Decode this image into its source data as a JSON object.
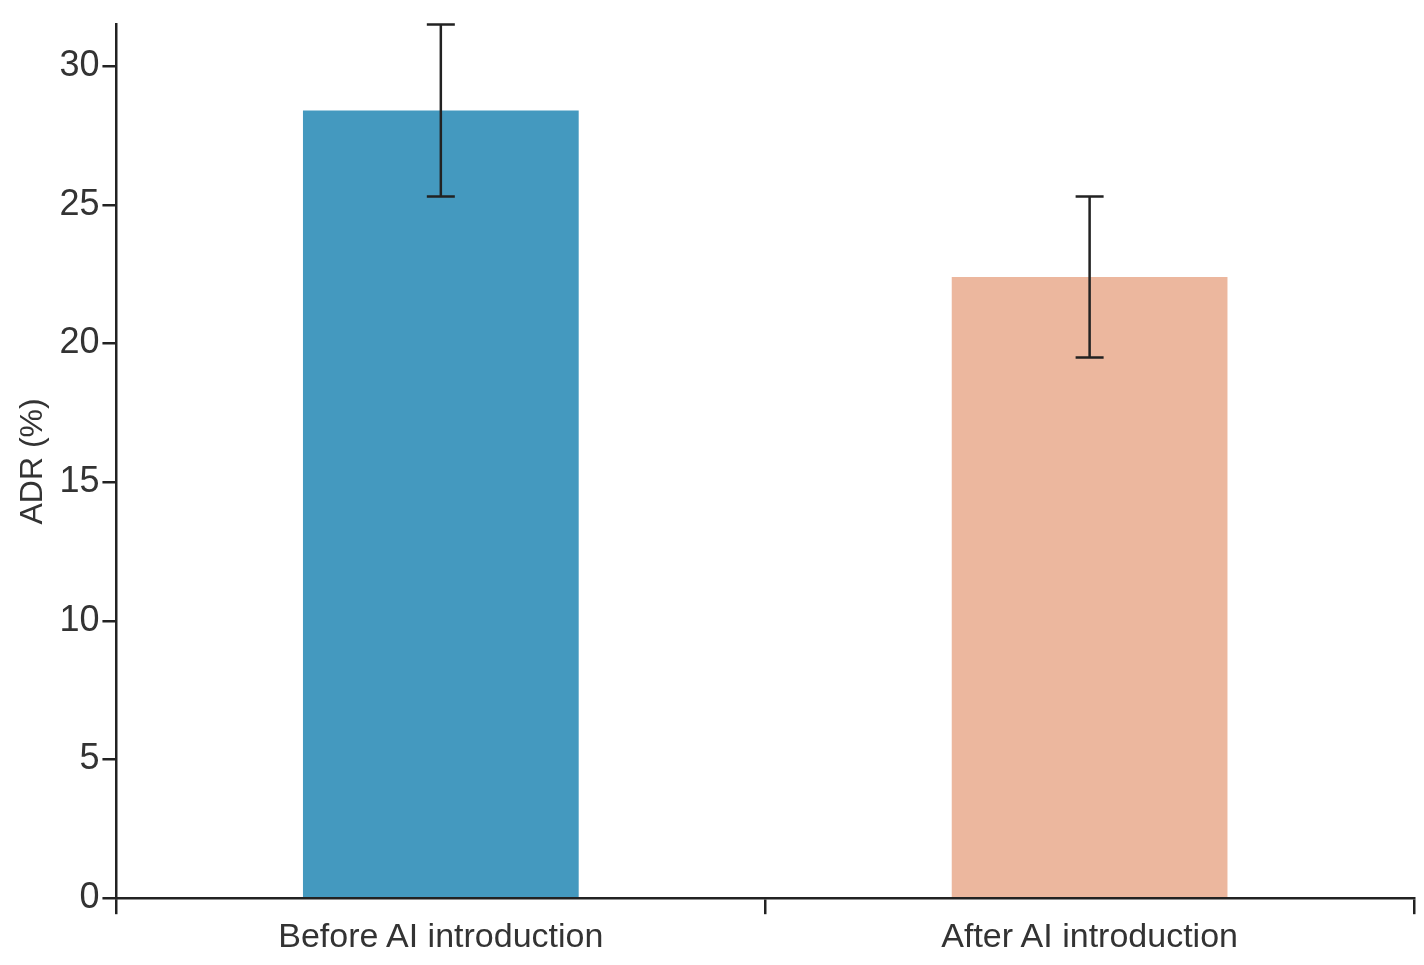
{
  "chart_data": {
    "type": "bar",
    "ylabel": "ADR (%)",
    "categories": [
      "Before AI introduction",
      "After AI introduction"
    ],
    "values": [
      28.4,
      22.4
    ],
    "colors": [
      "#4499bf",
      "#ecb79e"
    ],
    "errors": [
      [
        25.3,
        31.5
      ],
      [
        19.5,
        25.3
      ]
    ],
    "ylim": [
      0,
      31.5
    ],
    "yticks": [
      0,
      5,
      10,
      15,
      20,
      25,
      30
    ],
    "legend": false
  }
}
